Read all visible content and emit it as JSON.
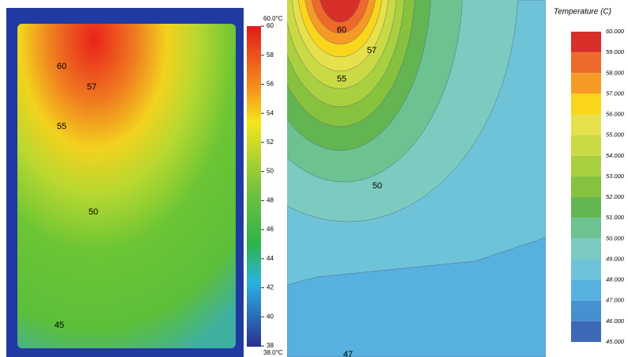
{
  "thermal_image": {
    "top_label": "60.0°C",
    "bottom_label": "38.0°C",
    "scale_ticks": [
      "60",
      "58",
      "56",
      "54",
      "52",
      "50",
      "48",
      "46",
      "44",
      "42",
      "40",
      "38"
    ],
    "contour_labels": [
      "60",
      "57",
      "55",
      "50",
      "45"
    ]
  },
  "simulation": {
    "legend_title": "Temperature (C)",
    "legend_ticks": [
      "60.000",
      "59.000",
      "58.000",
      "57.000",
      "56.000",
      "55.000",
      "54.000",
      "53.000",
      "52.000",
      "51.000",
      "50.000",
      "49.000",
      "48.000",
      "47.000",
      "46.000",
      "45.000"
    ],
    "legend_colors": [
      "#d7302a",
      "#ee6a2a",
      "#f59b25",
      "#f9d51b",
      "#e6e04a",
      "#c9da45",
      "#a9d040",
      "#86c23e",
      "#63b552",
      "#6cc290",
      "#7ccbc0",
      "#6ec3d8",
      "#56b1e0",
      "#4590cf",
      "#3d68b6"
    ],
    "contour_labels": [
      "60",
      "57",
      "55",
      "50",
      "47"
    ]
  }
}
